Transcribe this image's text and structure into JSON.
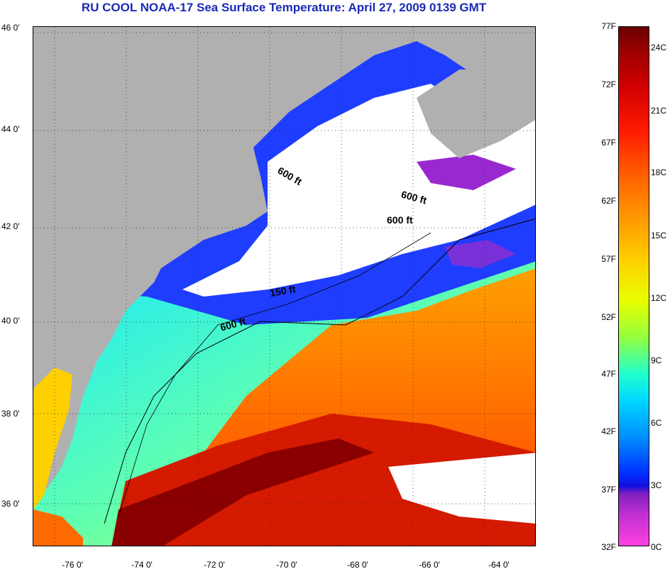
{
  "title": "RU COOL  NOAA-17  Sea Surface Temperature:  April 27, 2009 0139 GMT",
  "map": {
    "lat_labels": [
      "46 0'",
      "44 0'",
      "42 0'",
      "40 0'",
      "38 0'",
      "36 0'"
    ],
    "lon_labels": [
      "-76 0'",
      "-74 0'",
      "-72 0'",
      "-70 0'",
      "-68 0'",
      "-66 0'",
      "-64 0'"
    ],
    "contour_labels": [
      "600 ft",
      "600 ft",
      "600 ft",
      "150 ft",
      "600 ft"
    ],
    "colors": {
      "land": "#b0b0b0",
      "cloud": "#ffffff",
      "cold": "#1f3dff",
      "warm": "#d41a00",
      "gulf_stream": "#8a0000"
    }
  },
  "colorbar": {
    "fahrenheit": [
      "77F",
      "72F",
      "67F",
      "62F",
      "57F",
      "52F",
      "47F",
      "42F",
      "37F",
      "32F"
    ],
    "celsius": [
      "24C",
      "21C",
      "18C",
      "15C",
      "12C",
      "9C",
      "6C",
      "3C",
      "0C"
    ]
  }
}
